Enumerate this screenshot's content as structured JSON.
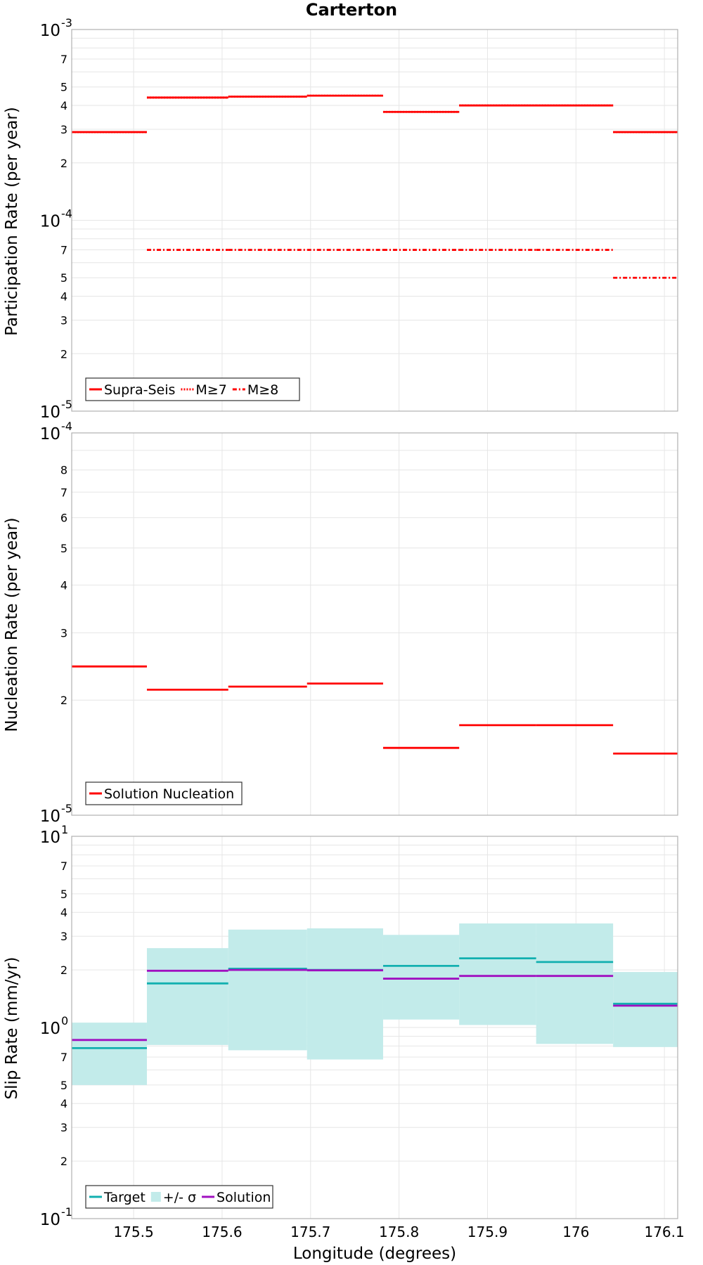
{
  "chart_data": [
    {
      "type": "line",
      "title": "Carterton",
      "ylabel": "Participation Rate (per year)",
      "xlabel": "",
      "yscale": "log",
      "ylim": [
        1e-05,
        0.001
      ],
      "xlim": [
        175.43,
        176.115
      ],
      "grid": true,
      "legend_position": "bottom-left",
      "x_ticks": [
        "175.5",
        "175.6",
        "175.7",
        "175.8",
        "175.9",
        "176",
        "176.1"
      ],
      "y_ticks": [
        {
          "v": 1e-05,
          "base": "10",
          "exp": "-5",
          "major": true
        },
        {
          "v": 2e-05,
          "label": "2"
        },
        {
          "v": 3e-05,
          "label": "3"
        },
        {
          "v": 4e-05,
          "label": "4"
        },
        {
          "v": 5e-05,
          "label": "5"
        },
        {
          "v": 7e-05,
          "label": "7"
        },
        {
          "v": 0.0001,
          "base": "10",
          "exp": "-4",
          "major": true
        },
        {
          "v": 0.0002,
          "label": "2"
        },
        {
          "v": 0.0003,
          "label": "3"
        },
        {
          "v": 0.0004,
          "label": "4"
        },
        {
          "v": 0.0005,
          "label": "5"
        },
        {
          "v": 0.0007,
          "label": "7"
        },
        {
          "v": 0.001,
          "base": "10",
          "exp": "-3",
          "major": true
        }
      ],
      "y_grid": [
        2e-05,
        3e-05,
        4e-05,
        5e-05,
        6e-05,
        7e-05,
        8e-05,
        9e-05,
        0.0001,
        0.0002,
        0.0003,
        0.0004,
        0.0005,
        0.0006,
        0.0007,
        0.0008,
        0.0009
      ],
      "series": [
        {
          "name": "Supra-Seis",
          "color": "#ff0000",
          "dash": "solid",
          "segments": [
            [
              175.43,
              175.515,
              0.00029
            ],
            [
              175.515,
              175.607,
              0.00044
            ],
            [
              175.607,
              175.696,
              0.000445
            ],
            [
              175.696,
              175.782,
              0.00045
            ],
            [
              175.782,
              175.868,
              0.00037
            ],
            [
              175.868,
              175.955,
              0.0004
            ],
            [
              175.955,
              176.042,
              0.0004
            ],
            [
              176.042,
              176.115,
              0.00029
            ]
          ]
        },
        {
          "name": "M≥7",
          "color": "#ff0000",
          "dash": "dotted",
          "segments": [
            [
              175.43,
              175.515,
              0.00029
            ],
            [
              175.515,
              175.607,
              0.00044
            ],
            [
              175.607,
              175.696,
              0.000445
            ],
            [
              175.696,
              175.782,
              0.00045
            ],
            [
              175.782,
              175.868,
              0.00037
            ],
            [
              175.868,
              175.955,
              0.0004
            ],
            [
              175.955,
              176.042,
              0.0004
            ],
            [
              176.042,
              176.115,
              0.00029
            ]
          ]
        },
        {
          "name": "M≥8",
          "color": "#ff0000",
          "dash": "dashdot",
          "segments": [
            [
              175.515,
              175.607,
              7e-05
            ],
            [
              175.607,
              175.696,
              7e-05
            ],
            [
              175.696,
              175.782,
              7e-05
            ],
            [
              175.782,
              175.868,
              7e-05
            ],
            [
              175.868,
              175.955,
              7e-05
            ],
            [
              175.955,
              176.042,
              7e-05
            ],
            [
              176.042,
              176.115,
              5e-05
            ]
          ]
        }
      ]
    },
    {
      "type": "line",
      "title": "",
      "ylabel": "Nucleation Rate (per year)",
      "xlabel": "",
      "yscale": "log",
      "ylim": [
        1e-05,
        0.0001
      ],
      "xlim": [
        175.43,
        176.115
      ],
      "grid": true,
      "legend_position": "bottom-left",
      "x_ticks": [
        "175.5",
        "175.6",
        "175.7",
        "175.8",
        "175.9",
        "176",
        "176.1"
      ],
      "y_ticks": [
        {
          "v": 1e-05,
          "base": "10",
          "exp": "-5",
          "major": true
        },
        {
          "v": 2e-05,
          "label": "2"
        },
        {
          "v": 3e-05,
          "label": "3"
        },
        {
          "v": 4e-05,
          "label": "4"
        },
        {
          "v": 5e-05,
          "label": "5"
        },
        {
          "v": 6e-05,
          "label": "6"
        },
        {
          "v": 7e-05,
          "label": "7"
        },
        {
          "v": 8e-05,
          "label": "8"
        },
        {
          "v": 0.0001,
          "base": "10",
          "exp": "-4",
          "major": true
        }
      ],
      "y_grid": [
        2e-05,
        3e-05,
        4e-05,
        5e-05,
        6e-05,
        7e-05,
        8e-05,
        9e-05
      ],
      "series": [
        {
          "name": "Solution Nucleation",
          "color": "#ff0000",
          "dash": "solid",
          "segments": [
            [
              175.43,
              175.515,
              2.45e-05
            ],
            [
              175.515,
              175.607,
              2.13e-05
            ],
            [
              175.607,
              175.696,
              2.17e-05
            ],
            [
              175.696,
              175.782,
              2.21e-05
            ],
            [
              175.782,
              175.868,
              1.5e-05
            ],
            [
              175.868,
              175.955,
              1.72e-05
            ],
            [
              175.955,
              176.042,
              1.72e-05
            ],
            [
              176.042,
              176.115,
              1.45e-05
            ]
          ]
        }
      ]
    },
    {
      "type": "line",
      "title": "",
      "ylabel": "Slip Rate (mm/yr)",
      "xlabel": "Longitude (degrees)",
      "yscale": "log",
      "ylim": [
        0.1,
        10
      ],
      "xlim": [
        175.43,
        176.115
      ],
      "grid": true,
      "legend_position": "bottom-left",
      "x_ticks": [
        "175.5",
        "175.6",
        "175.7",
        "175.8",
        "175.9",
        "176",
        "176.1"
      ],
      "y_ticks": [
        {
          "v": 0.1,
          "base": "10",
          "exp": "-1",
          "major": true
        },
        {
          "v": 0.2,
          "label": "2"
        },
        {
          "v": 0.3,
          "label": "3"
        },
        {
          "v": 0.4,
          "label": "4"
        },
        {
          "v": 0.5,
          "label": "5"
        },
        {
          "v": 0.7,
          "label": "7"
        },
        {
          "v": 1,
          "base": "10",
          "exp": "0",
          "major": true
        },
        {
          "v": 2,
          "label": "2"
        },
        {
          "v": 3,
          "label": "3"
        },
        {
          "v": 4,
          "label": "4"
        },
        {
          "v": 5,
          "label": "5"
        },
        {
          "v": 7,
          "label": "7"
        },
        {
          "v": 10,
          "base": "10",
          "exp": "1",
          "major": true
        }
      ],
      "y_grid": [
        0.2,
        0.3,
        0.4,
        0.5,
        0.6,
        0.7,
        0.8,
        0.9,
        1,
        2,
        3,
        4,
        5,
        6,
        7,
        8,
        9
      ],
      "bands": [
        {
          "name": "+/- σ",
          "color": "#c2ebea",
          "segments": [
            [
              175.43,
              175.515,
              0.5,
              1.06
            ],
            [
              175.515,
              175.607,
              0.81,
              2.6
            ],
            [
              175.607,
              175.696,
              0.76,
              3.25
            ],
            [
              175.696,
              175.782,
              0.68,
              3.3
            ],
            [
              175.782,
              175.868,
              1.1,
              3.05
            ],
            [
              175.868,
              175.955,
              1.03,
              3.5
            ],
            [
              175.955,
              176.042,
              0.82,
              3.5
            ],
            [
              176.042,
              176.115,
              0.79,
              1.95
            ]
          ]
        }
      ],
      "series": [
        {
          "name": "Target",
          "color": "#12b0b0",
          "dash": "solid",
          "segments": [
            [
              175.43,
              175.515,
              0.78
            ],
            [
              175.515,
              175.607,
              1.7
            ],
            [
              175.607,
              175.696,
              2.03
            ],
            [
              175.696,
              175.782,
              2.0
            ],
            [
              175.782,
              175.868,
              2.1
            ],
            [
              175.868,
              175.955,
              2.3
            ],
            [
              175.955,
              176.042,
              2.2
            ],
            [
              176.042,
              176.115,
              1.33
            ]
          ]
        },
        {
          "name": "Solution",
          "color": "#a010c0",
          "dash": "solid",
          "segments": [
            [
              175.43,
              175.515,
              0.86
            ],
            [
              175.515,
              175.607,
              1.98
            ],
            [
              175.607,
              175.696,
              2.0
            ],
            [
              175.696,
              175.782,
              1.99
            ],
            [
              175.782,
              175.868,
              1.8
            ],
            [
              175.868,
              175.955,
              1.86
            ],
            [
              175.955,
              176.042,
              1.86
            ],
            [
              176.042,
              176.115,
              1.3
            ]
          ]
        }
      ]
    }
  ]
}
